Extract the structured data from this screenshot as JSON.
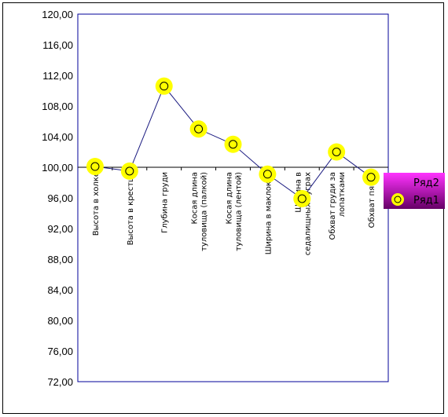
{
  "chart_data": {
    "type": "line",
    "title": "",
    "xlabel": "",
    "ylabel": "",
    "ylim": [
      72,
      120
    ],
    "y_ticks": [
      "72,00",
      "76,00",
      "80,00",
      "84,00",
      "88,00",
      "92,00",
      "96,00",
      "100,00",
      "104,00",
      "108,00",
      "112,00",
      "116,00",
      "120,00"
    ],
    "x_axis_crosses_at": 100,
    "grid": false,
    "categories": [
      [
        "Высота в холке"
      ],
      [
        "Высота в крестце"
      ],
      [
        "Глубина груди"
      ],
      [
        "Косая длина",
        "туловища (палкой)"
      ],
      [
        "Косая длина",
        "туловища (лентой)"
      ],
      [
        "Ширина в маклоках"
      ],
      [
        "Ширина в",
        "седалищных буграх"
      ],
      [
        "Обхват груди за",
        "лопатками"
      ],
      [
        "Обхват пясти"
      ]
    ],
    "series": [
      {
        "name": "Ряд1",
        "values": [
          100.1,
          99.5,
          110.6,
          105.0,
          103.0,
          99.1,
          95.9,
          102.0,
          98.7
        ],
        "line_color": "#1a1a80",
        "marker_fill": "#ffff00",
        "marker_edge": "#000000"
      }
    ],
    "legend": {
      "placement": "right",
      "entries": [
        "Ряд2",
        "Ряд1"
      ],
      "bg_top": "#ff33ff",
      "bg_bottom": "#660066"
    },
    "colors": {
      "plot_border": "#000099",
      "axis_line": "#000000"
    }
  }
}
